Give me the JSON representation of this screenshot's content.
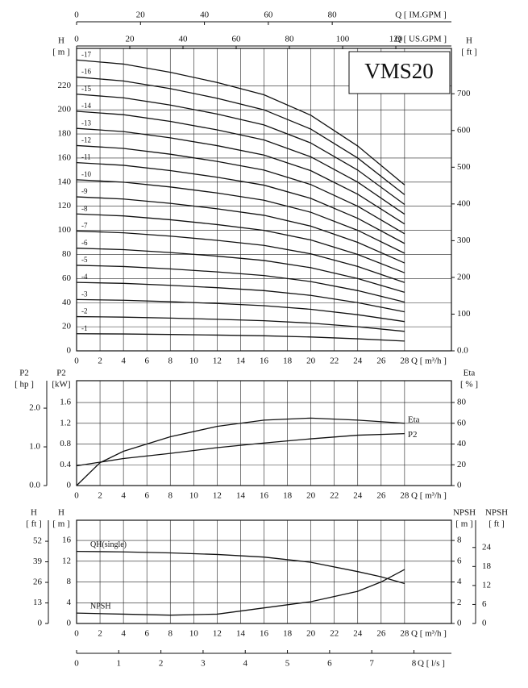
{
  "chart_data": [
    {
      "type": "line",
      "title": "VMS20",
      "x": [
        0,
        4,
        8,
        12,
        16,
        20,
        24,
        28
      ],
      "xlim": [
        0,
        32
      ],
      "xticks": [
        0,
        2,
        4,
        6,
        8,
        10,
        12,
        14,
        16,
        18,
        20,
        22,
        24,
        26,
        28
      ],
      "xlabel": "Q [ m³/h ]",
      "ylim": [
        0,
        251
      ],
      "yticks": [
        0,
        20,
        40,
        60,
        80,
        100,
        120,
        140,
        160,
        180,
        200,
        220
      ],
      "ylabel": [
        "H",
        "[ m ]"
      ],
      "y2lim": [
        0,
        823.5
      ],
      "y2ticks": [
        {
          "value": 0,
          "label": "0.0"
        },
        100,
        200,
        300,
        400,
        500,
        600,
        700
      ],
      "y2label": [
        "H",
        "[ ft ]"
      ],
      "top_axes": [
        {
          "label": "Q [ US.GPM ]",
          "lim": [
            0,
            140.9
          ],
          "ticks": [
            0,
            20,
            40,
            60,
            80,
            100,
            120
          ]
        },
        {
          "label": "Q [ IM.GPM ]",
          "lim": [
            0,
            117.3
          ],
          "ticks": [
            0,
            20,
            40,
            60,
            80
          ]
        }
      ],
      "grid": true,
      "series": [
        {
          "name": "-1",
          "color": "#111111",
          "values": [
            14.2,
            14.0,
            13.6,
            13.1,
            12.5,
            11.5,
            10.0,
            8.1
          ]
        },
        {
          "name": "-2",
          "color": "#111111",
          "values": [
            28.4,
            28.0,
            27.2,
            26.2,
            25.0,
            23.0,
            20.0,
            16.2
          ]
        },
        {
          "name": "-3",
          "color": "#111111",
          "values": [
            42.6,
            42.0,
            40.8,
            39.3,
            37.5,
            34.5,
            30.0,
            24.3
          ]
        },
        {
          "name": "-4",
          "color": "#111111",
          "values": [
            56.8,
            56.0,
            54.4,
            52.4,
            50.0,
            46.0,
            40.0,
            32.4
          ]
        },
        {
          "name": "-5",
          "color": "#111111",
          "values": [
            71.0,
            70.0,
            68.0,
            65.5,
            62.5,
            57.5,
            50.0,
            40.5
          ]
        },
        {
          "name": "-6",
          "color": "#111111",
          "values": [
            85.2,
            84.0,
            81.6,
            78.6,
            75.0,
            69.0,
            60.0,
            48.6
          ]
        },
        {
          "name": "-7",
          "color": "#111111",
          "values": [
            99.4,
            98.0,
            95.2,
            91.7,
            87.5,
            80.5,
            70.0,
            56.7
          ]
        },
        {
          "name": "-8",
          "color": "#111111",
          "values": [
            113.6,
            112.0,
            108.8,
            104.8,
            100.0,
            92.0,
            80.0,
            64.8
          ]
        },
        {
          "name": "-9",
          "color": "#111111",
          "values": [
            127.8,
            126.0,
            122.4,
            117.9,
            112.5,
            103.5,
            90.0,
            72.9
          ]
        },
        {
          "name": "-10",
          "color": "#111111",
          "values": [
            142.0,
            140.0,
            136.0,
            131.0,
            125.0,
            115.0,
            100.0,
            81.0
          ]
        },
        {
          "name": "-11",
          "color": "#111111",
          "values": [
            156.2,
            154.0,
            149.6,
            144.1,
            137.5,
            126.5,
            110.0,
            89.1
          ]
        },
        {
          "name": "-12",
          "color": "#111111",
          "values": [
            170.4,
            168.0,
            163.2,
            157.2,
            150.0,
            138.0,
            120.0,
            97.2
          ]
        },
        {
          "name": "-13",
          "color": "#111111",
          "values": [
            184.6,
            182.0,
            176.8,
            170.3,
            162.5,
            149.5,
            130.0,
            105.3
          ]
        },
        {
          "name": "-14",
          "color": "#111111",
          "values": [
            198.8,
            196.0,
            190.4,
            183.4,
            175.0,
            161.0,
            140.0,
            113.4
          ]
        },
        {
          "name": "-15",
          "color": "#111111",
          "values": [
            213.0,
            210.0,
            204.0,
            196.5,
            187.5,
            172.5,
            150.0,
            121.5
          ]
        },
        {
          "name": "-16",
          "color": "#111111",
          "values": [
            227.2,
            224.0,
            217.6,
            209.6,
            200.0,
            184.0,
            160.0,
            129.6
          ]
        },
        {
          "name": "-17",
          "color": "#111111",
          "values": [
            241.4,
            238.0,
            231.2,
            222.7,
            212.5,
            195.5,
            170.0,
            137.7
          ]
        }
      ]
    },
    {
      "type": "line",
      "x": [
        0,
        2,
        4,
        8,
        12,
        16,
        20,
        24,
        28
      ],
      "xlim": [
        0,
        32
      ],
      "xticks": [
        0,
        2,
        4,
        6,
        8,
        10,
        12,
        14,
        16,
        18,
        20,
        22,
        24,
        26,
        28
      ],
      "xlabel": "Q [ m³/h ]",
      "ylim": [
        0,
        2.02
      ],
      "yticks": [
        0,
        0.4,
        0.8,
        1.2,
        1.6
      ],
      "ylabel": [
        "P2",
        "[kW]"
      ],
      "y2lim": [
        0,
        101
      ],
      "y2ticks": [
        0,
        20,
        40,
        60,
        80
      ],
      "y2label": [
        "Eta",
        "[ % ]"
      ],
      "y3lim": [
        0,
        2.71
      ],
      "y3ticks": [
        {
          "value": 0,
          "label": "0.0"
        },
        {
          "value": 1,
          "label": "1.0"
        },
        {
          "value": 2,
          "label": "2.0"
        }
      ],
      "y3label": [
        "P2",
        "[ hp ]"
      ],
      "grid": true,
      "series": [
        {
          "name": "Eta",
          "color": "#111111",
          "axis": "y2",
          "values": [
            0,
            22,
            33,
            47,
            57,
            63,
            65,
            63,
            60
          ]
        },
        {
          "name": "P2",
          "color": "#111111",
          "values": [
            0.38,
            0.45,
            0.52,
            0.62,
            0.73,
            0.82,
            0.9,
            0.97,
            1.0
          ]
        }
      ]
    },
    {
      "type": "line",
      "x": [
        0,
        4,
        8,
        12,
        16,
        20,
        24,
        26,
        28
      ],
      "xlim": [
        0,
        32
      ],
      "xticks": [
        0,
        2,
        4,
        6,
        8,
        10,
        12,
        14,
        16,
        18,
        20,
        22,
        24,
        26,
        28
      ],
      "xlabel": "Q [ m³/h ]",
      "ylim": [
        0,
        19.9
      ],
      "yticks": [
        0,
        4,
        8,
        12,
        16
      ],
      "ylabel": [
        "H",
        "[ m ]"
      ],
      "y3lim": [
        0,
        65.3
      ],
      "y3ticks": [
        0,
        13,
        26,
        39,
        52
      ],
      "y3label": [
        "H",
        "[ ft ]"
      ],
      "y2lim": [
        0,
        9.95
      ],
      "y2ticks": [
        0,
        2,
        4,
        6,
        8
      ],
      "y2label": [
        "NPSH",
        "[ m ]"
      ],
      "y4lim": [
        0,
        32.6
      ],
      "y4ticks": [
        0,
        6,
        12,
        18,
        24
      ],
      "y4label": [
        "NPSH",
        "[ ft ]"
      ],
      "bottom_axis": {
        "label": "Q [ l/s ]",
        "lim": [
          0,
          8.889
        ],
        "ticks": [
          0,
          1,
          2,
          3,
          4,
          5,
          6,
          7,
          8
        ]
      },
      "grid": true,
      "series": [
        {
          "name": "QH(single)",
          "color": "#111111",
          "values": [
            13.9,
            13.8,
            13.6,
            13.3,
            12.8,
            11.8,
            10.0,
            9.0,
            7.7
          ]
        },
        {
          "name": "NPSH",
          "color": "#111111",
          "axis": "y2",
          "values": [
            1.0,
            0.9,
            0.8,
            0.9,
            1.5,
            2.1,
            3.1,
            4.0,
            5.2
          ]
        }
      ]
    }
  ]
}
